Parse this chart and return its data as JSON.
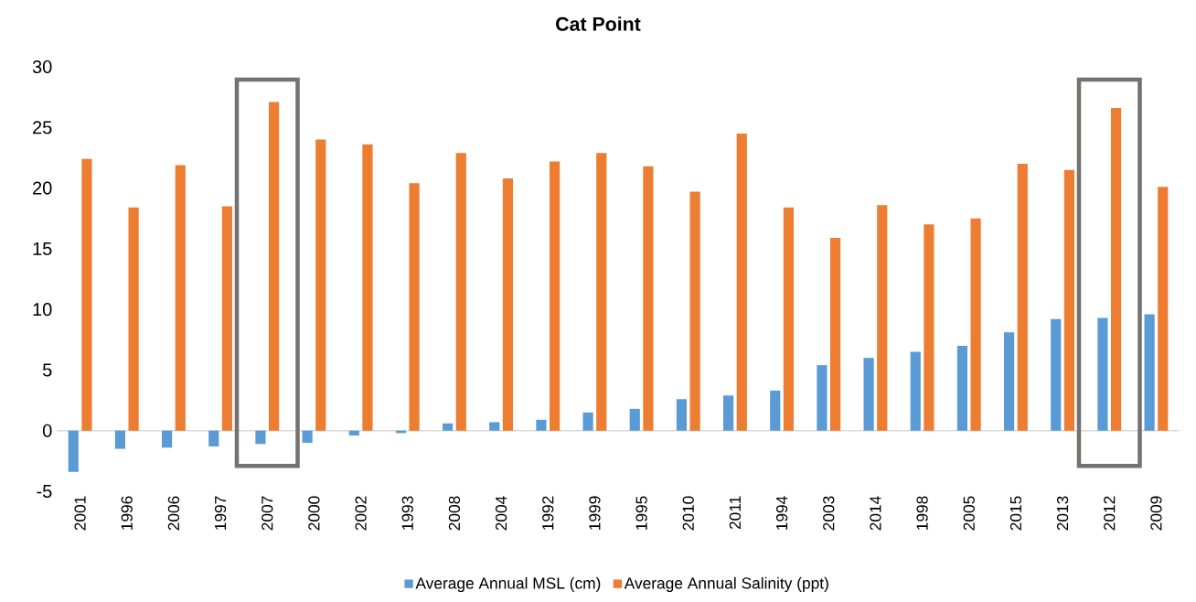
{
  "chart_data": {
    "type": "bar",
    "title": "Cat Point",
    "categories": [
      "2001",
      "1996",
      "2006",
      "1997",
      "2007",
      "2000",
      "2002",
      "1993",
      "2008",
      "2004",
      "1992",
      "1999",
      "1995",
      "2010",
      "2011",
      "1994",
      "2003",
      "2014",
      "1998",
      "2005",
      "2015",
      "2013",
      "2012",
      "2009"
    ],
    "series": [
      {
        "name": "Average Annual MSL (cm)",
        "color": "#5b9bd5",
        "values": [
          -3.4,
          -1.5,
          -1.4,
          -1.3,
          -1.1,
          -1.0,
          -0.4,
          -0.2,
          0.6,
          0.7,
          0.9,
          1.5,
          1.8,
          2.6,
          2.9,
          3.3,
          5.4,
          6.0,
          6.5,
          7.0,
          8.1,
          9.2,
          9.3,
          9.6
        ]
      },
      {
        "name": "Average Annual Salinity (ppt)",
        "color": "#ed7d31",
        "values": [
          22.4,
          18.4,
          21.9,
          18.5,
          27.1,
          24.0,
          23.6,
          20.4,
          22.9,
          20.8,
          22.2,
          22.9,
          21.8,
          19.7,
          24.5,
          18.4,
          15.9,
          18.6,
          17.0,
          17.5,
          22.0,
          21.5,
          26.6,
          20.1
        ]
      }
    ],
    "ylim": [
      -5,
      30
    ],
    "yticks": [
      -5,
      0,
      5,
      10,
      15,
      20,
      25,
      30
    ],
    "legend": "bottom"
  }
}
